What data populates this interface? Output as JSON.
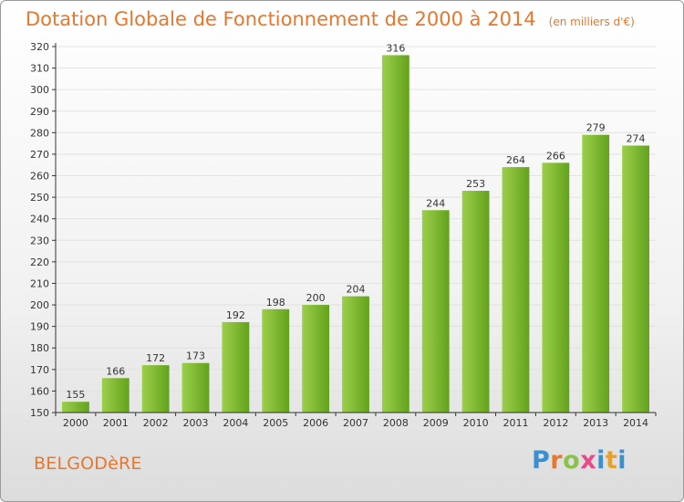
{
  "title": "Dotation Globale de Fonctionnement de 2000 à 2014",
  "unit": "(en milliers d'€)",
  "place": "BELGODèRE",
  "brand": "Proxiti",
  "colors": {
    "title": "#e8762b",
    "bar_light": "#9ccf4b",
    "bar_dark": "#63a21c",
    "axis": "#333333",
    "grid": "#e2e2e2"
  },
  "chart_data": {
    "type": "bar",
    "categories": [
      "2000",
      "2001",
      "2002",
      "2003",
      "2004",
      "2005",
      "2006",
      "2007",
      "2008",
      "2009",
      "2010",
      "2011",
      "2012",
      "2013",
      "2014"
    ],
    "values": [
      155,
      166,
      172,
      173,
      192,
      198,
      200,
      204,
      316,
      244,
      253,
      264,
      266,
      279,
      274
    ],
    "data_labels": [
      "155",
      "166",
      "172",
      "173",
      "192",
      "198",
      "200",
      "204",
      "316",
      "244",
      "253",
      "264",
      "266",
      "279",
      "274"
    ],
    "ylim": [
      150,
      320
    ],
    "yticks": [
      150,
      160,
      170,
      180,
      190,
      200,
      210,
      220,
      230,
      240,
      250,
      260,
      270,
      280,
      290,
      300,
      310,
      320
    ],
    "ytick_labels": [
      "150",
      "160",
      "170",
      "180",
      "190",
      "200",
      "210",
      "220",
      "230",
      "240",
      "250",
      "260",
      "270",
      "280",
      "290",
      "300",
      "310",
      "320"
    ],
    "xlabel": "",
    "ylabel": "",
    "grid": true,
    "legend": "none"
  }
}
